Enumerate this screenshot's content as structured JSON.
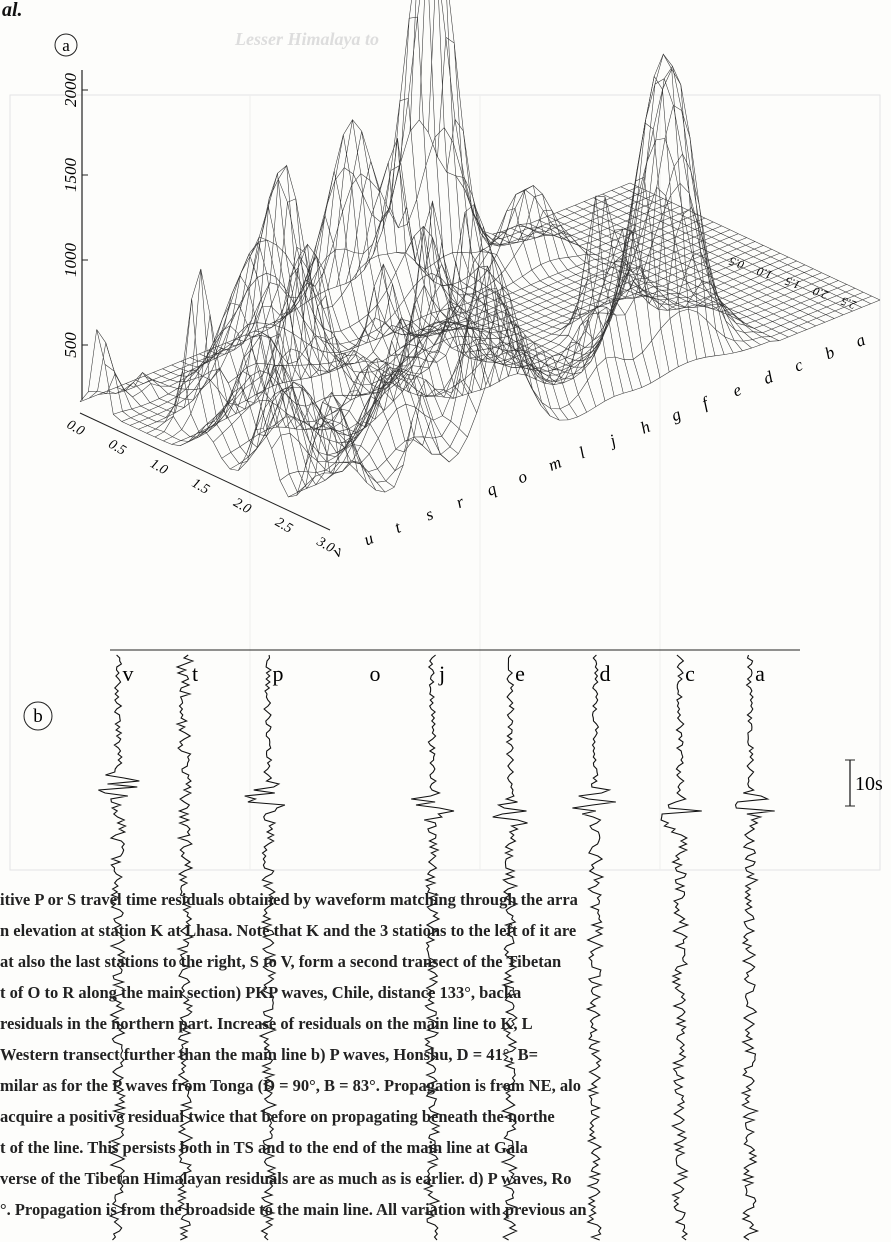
{
  "header": {
    "text": "al.",
    "bleed_title": "Lesser Himalaya to"
  },
  "panel_a": {
    "label": "a",
    "z_ticks": [
      "500",
      "1000",
      "1500",
      "2000"
    ],
    "x_ticks": [
      "0.0",
      "0.5",
      "1.0",
      "1.5",
      "2.0",
      "2.5",
      "3.0"
    ],
    "depth_ticks": [
      "0.5",
      "1.0",
      "1.5",
      "2.0",
      "2.5"
    ],
    "stations": [
      "v",
      "u",
      "t",
      "s",
      "r",
      "q",
      "o",
      "m",
      "l",
      "j",
      "h",
      "g",
      "f",
      "e",
      "d",
      "c",
      "b",
      "a"
    ]
  },
  "panel_b": {
    "label": "b",
    "stations": [
      "v",
      "t",
      "p",
      "o",
      "j",
      "e",
      "d",
      "c",
      "a"
    ],
    "scale": "10s"
  },
  "caption": [
    "itive P or S travel time residuals obtained by waveform matching through the arra",
    "n elevation at station K at Lhasa. Note that K and the 3 stations to the left of it are",
    "at also the last stations to the right, S to V, form a second transect of the Tibetan",
    "t of O to R along the main section) PKP waves, Chile, distance 133°, backa",
    "residuals in the northern part. Increase of residuals on the main line to K, L",
    "Western transect further than the main line b) P waves, Honshu, D = 41°, B=",
    "milar as for the P waves from Tonga (D = 90°, B = 83°. Propagation is from NE, alo",
    "acquire a positive residual twice that before on propagating beneath the northe",
    "t of the line. This persists both in TS and to the end of the main line at Gala",
    "verse of the Tibetan Himalayan residuals are as much as is earlier. d) P waves, Ro",
    "°. Propagation is from the broadside to the main line. All variation with previous an"
  ]
}
